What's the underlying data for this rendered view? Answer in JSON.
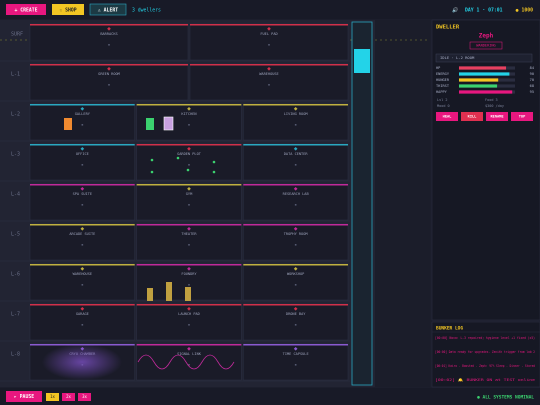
{
  "header": {
    "buttons": [
      {
        "text": "+ CREATE",
        "color": "#e8177f"
      },
      {
        "text": "☆ SHOP",
        "color": "#f3c623"
      },
      {
        "text": "⚠ ALERT",
        "color": "#1c3a44"
      }
    ],
    "dwellers": "3 dwellers",
    "sound": "🔊",
    "clock": "DAY 1 · 07:01",
    "coins": "● 1000"
  },
  "floors": [
    {
      "label": "SURF",
      "rooms": [
        {
          "name": "BARRACKS",
          "color": "#d0304a"
        },
        {
          "name": "FUEL PAD",
          "color": "#d0304a"
        }
      ]
    },
    {
      "label": "L-1",
      "rooms": [
        {
          "name": "GREEN ROOM",
          "color": "#d0304a"
        },
        {
          "name": "WAREHOUSE",
          "color": "#d0304a"
        }
      ]
    },
    {
      "label": "L-2",
      "rooms": [
        {
          "name": "GALLERY",
          "color": "#2aa7c0"
        },
        {
          "name": "KITCHEN",
          "color": "#c0b040"
        },
        {
          "name": "LIVING ROOM",
          "color": "#c0b040"
        }
      ]
    },
    {
      "label": "L-3",
      "rooms": [
        {
          "name": "OFFICE",
          "color": "#2aa7c0"
        },
        {
          "name": "GARDEN PLOT",
          "color": "#d0304a"
        },
        {
          "name": "DATA CENTER",
          "color": "#2aa7c0"
        }
      ]
    },
    {
      "label": "L-4",
      "rooms": [
        {
          "name": "SPA SUITE",
          "color": "#c02a9a"
        },
        {
          "name": "GYM",
          "color": "#c0b040"
        },
        {
          "name": "RESEARCH LAB",
          "color": "#c02a9a"
        }
      ]
    },
    {
      "label": "L-5",
      "rooms": [
        {
          "name": "ARCADE SUITE",
          "color": "#c0b040"
        },
        {
          "name": "THEATER",
          "color": "#c02a9a"
        },
        {
          "name": "TROPHY ROOM",
          "color": "#c02a9a"
        }
      ]
    },
    {
      "label": "L-6",
      "rooms": [
        {
          "name": "WAREHOUSE",
          "color": "#c0b040"
        },
        {
          "name": "FOUNDRY",
          "color": "#c02a9a"
        },
        {
          "name": "WORKSHOP",
          "color": "#c0b040"
        }
      ]
    },
    {
      "label": "L-7",
      "rooms": [
        {
          "name": "GARAGE",
          "color": "#d0304a"
        },
        {
          "name": "LAUNCH PAD",
          "color": "#d0304a"
        },
        {
          "name": "DRONE BAY",
          "color": "#d0304a"
        }
      ]
    },
    {
      "label": "L-8",
      "rooms": [
        {
          "name": "CRYO CHAMBER",
          "color": "#8a5ad0"
        },
        {
          "name": "SIGNAL LINK",
          "color": "#c02a9a"
        },
        {
          "name": "TIME CAPSULE",
          "color": "#8a5ad0"
        }
      ]
    }
  ],
  "panel": {
    "title": "DWELLER",
    "name": "Zeph",
    "badge": "WANDERING",
    "status": "IDLE · L-2 ROOM",
    "stats": [
      {
        "label": "HP",
        "value": 84,
        "color": "#e84060"
      },
      {
        "label": "ENERGY",
        "value": 90,
        "color": "#23d3e8"
      },
      {
        "label": "HUNGER",
        "value": 70,
        "color": "#f3c623"
      },
      {
        "label": "THIRST",
        "value": 68,
        "color": "#3bd16f"
      },
      {
        "label": "HAPPY",
        "value": 95,
        "color": "#e8177f"
      }
    ],
    "details": [
      "Lvl 2",
      "Food 3",
      "Mood 0",
      "$300 /day"
    ],
    "buttons": [
      "HEAL",
      "KILL",
      "RENAME",
      "TOP"
    ]
  },
  "log": {
    "title": "BUNKER LOG",
    "entries": [
      "[00:00] Nova: L-3 repaired; hygiene level +1 fixed (x5)",
      "[00:00] Data ready for upgrades. Zenith trigger from lab 2",
      "[00:01] Kairo - Boosted - Zeph: 97% Sleep - Dinner - Stored",
      "[00:02] 🔔 BUNKER ON at TEST online"
    ]
  },
  "footer": {
    "pause": "▸ PAUSE",
    "speeds": [
      "1x",
      "2x",
      "3x"
    ],
    "status": "● ALL SYSTEMS NOMINAL"
  }
}
